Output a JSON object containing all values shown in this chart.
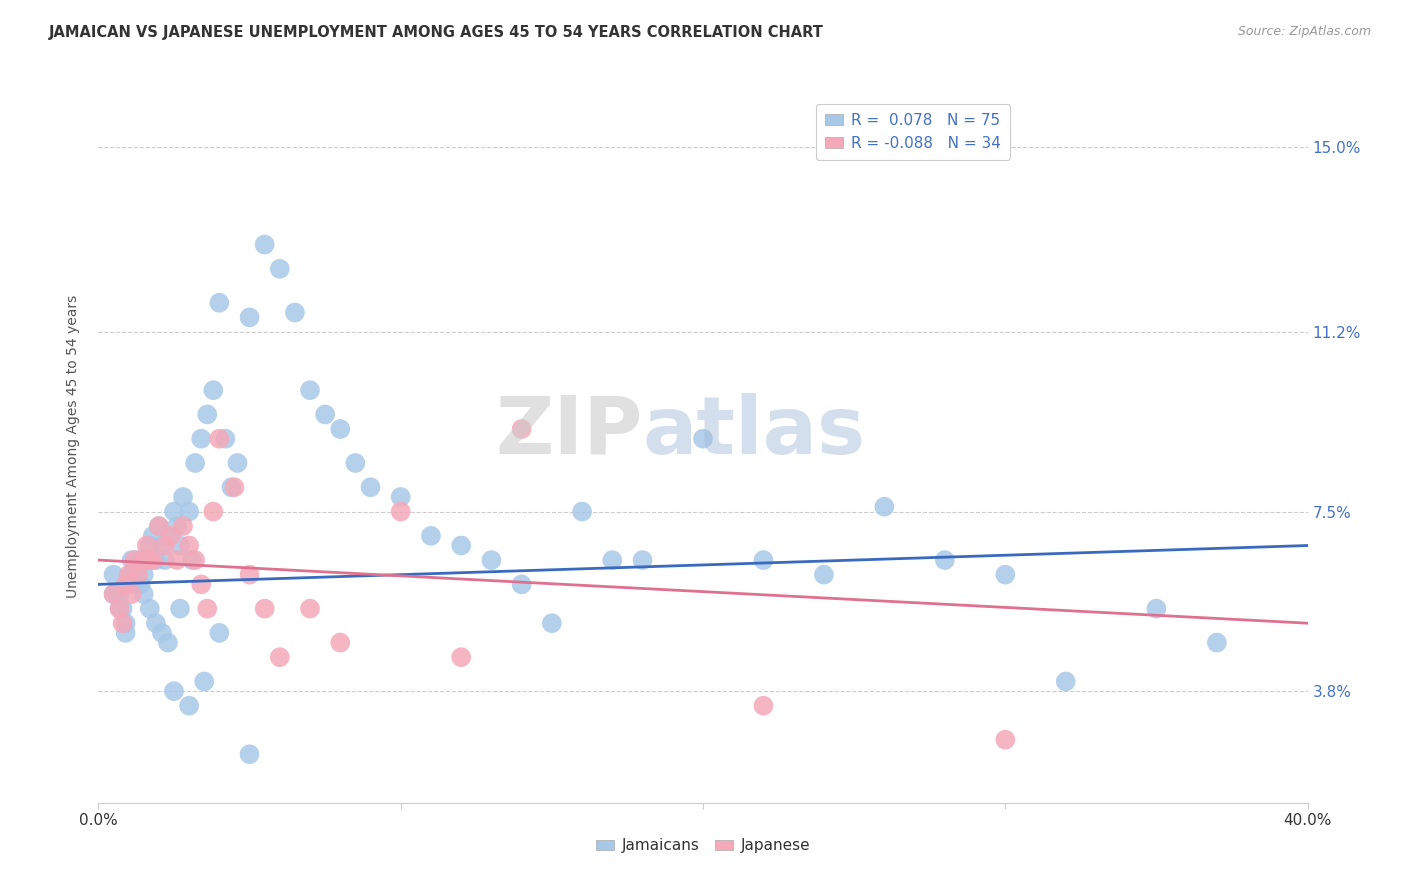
{
  "title": "JAMAICAN VS JAPANESE UNEMPLOYMENT AMONG AGES 45 TO 54 YEARS CORRELATION CHART",
  "source": "Source: ZipAtlas.com",
  "ylabel": "Unemployment Among Ages 45 to 54 years",
  "ytick_labels": [
    "3.8%",
    "7.5%",
    "11.2%",
    "15.0%"
  ],
  "ytick_values": [
    0.038,
    0.075,
    0.112,
    0.15
  ],
  "xlim": [
    0.0,
    0.4
  ],
  "ylim": [
    0.015,
    0.162
  ],
  "jamaican_color": "#a8c8e8",
  "japanese_color": "#f4a8b8",
  "jamaican_line_color": "#3a6abf",
  "japanese_line_color": "#e07090",
  "jamaican_scatter_x": [
    0.005,
    0.007,
    0.008,
    0.009,
    0.01,
    0.011,
    0.012,
    0.013,
    0.014,
    0.015,
    0.016,
    0.017,
    0.018,
    0.019,
    0.02,
    0.021,
    0.022,
    0.023,
    0.025,
    0.026,
    0.027,
    0.028,
    0.03,
    0.031,
    0.032,
    0.034,
    0.036,
    0.038,
    0.04,
    0.042,
    0.044,
    0.046,
    0.05,
    0.055,
    0.06,
    0.065,
    0.07,
    0.075,
    0.08,
    0.085,
    0.09,
    0.1,
    0.11,
    0.12,
    0.13,
    0.14,
    0.15,
    0.16,
    0.17,
    0.18,
    0.2,
    0.22,
    0.24,
    0.26,
    0.28,
    0.3,
    0.32,
    0.35,
    0.37,
    0.005,
    0.007,
    0.009,
    0.011,
    0.013,
    0.015,
    0.017,
    0.019,
    0.021,
    0.023,
    0.025,
    0.027,
    0.03,
    0.035,
    0.04,
    0.05
  ],
  "jamaican_scatter_y": [
    0.062,
    0.058,
    0.055,
    0.05,
    0.06,
    0.065,
    0.062,
    0.065,
    0.06,
    0.062,
    0.065,
    0.068,
    0.07,
    0.065,
    0.072,
    0.068,
    0.065,
    0.07,
    0.075,
    0.072,
    0.068,
    0.078,
    0.075,
    0.065,
    0.085,
    0.09,
    0.095,
    0.1,
    0.118,
    0.09,
    0.08,
    0.085,
    0.115,
    0.13,
    0.125,
    0.116,
    0.1,
    0.095,
    0.092,
    0.085,
    0.08,
    0.078,
    0.07,
    0.068,
    0.065,
    0.06,
    0.052,
    0.075,
    0.065,
    0.065,
    0.09,
    0.065,
    0.062,
    0.076,
    0.065,
    0.062,
    0.04,
    0.055,
    0.048,
    0.058,
    0.055,
    0.052,
    0.062,
    0.06,
    0.058,
    0.055,
    0.052,
    0.05,
    0.048,
    0.038,
    0.055,
    0.035,
    0.04,
    0.05,
    0.025
  ],
  "japanese_scatter_x": [
    0.005,
    0.007,
    0.008,
    0.009,
    0.01,
    0.011,
    0.012,
    0.013,
    0.015,
    0.016,
    0.017,
    0.018,
    0.02,
    0.022,
    0.024,
    0.026,
    0.028,
    0.03,
    0.032,
    0.034,
    0.036,
    0.038,
    0.04,
    0.045,
    0.05,
    0.055,
    0.06,
    0.07,
    0.08,
    0.1,
    0.12,
    0.14,
    0.22,
    0.3
  ],
  "japanese_scatter_y": [
    0.058,
    0.055,
    0.052,
    0.06,
    0.062,
    0.058,
    0.065,
    0.062,
    0.065,
    0.068,
    0.065,
    0.065,
    0.072,
    0.068,
    0.07,
    0.065,
    0.072,
    0.068,
    0.065,
    0.06,
    0.055,
    0.075,
    0.09,
    0.08,
    0.062,
    0.055,
    0.045,
    0.055,
    0.048,
    0.075,
    0.045,
    0.092,
    0.035,
    0.028
  ],
  "jamaican_trend_x": [
    0.0,
    0.4
  ],
  "jamaican_trend_y": [
    0.06,
    0.068
  ],
  "japanese_trend_x": [
    0.0,
    0.4
  ],
  "japanese_trend_y": [
    0.065,
    0.052
  ],
  "xtick_positions": [
    0.0,
    0.1,
    0.2,
    0.3,
    0.4
  ],
  "xtick_show": [
    true,
    false,
    false,
    false,
    true
  ]
}
